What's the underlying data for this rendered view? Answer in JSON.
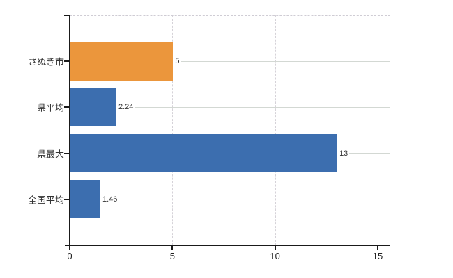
{
  "chart_data": {
    "type": "bar",
    "orientation": "horizontal",
    "categories": [
      "さぬき市",
      "県平均",
      "県最大",
      "全国平均"
    ],
    "values": [
      5,
      2.24,
      13,
      1.46
    ],
    "value_labels": [
      "5",
      "2.24",
      "13",
      "1.46"
    ],
    "bar_colors": [
      "#eb963c",
      "#3c6eaf",
      "#3c6eaf",
      "#3c6eaf"
    ],
    "xlim": [
      0,
      15
    ],
    "xticks": [
      0,
      5,
      10,
      15
    ],
    "xtick_labels": [
      "0",
      "5",
      "10",
      "15"
    ],
    "grid": true,
    "legend_position": "none",
    "colors": {
      "highlight_bar": "#eb963c",
      "default_bar": "#3c6eaf",
      "axis": "#1a1a1a",
      "horizontal_gridline": "#d3d8d3",
      "vertical_gridline": "#d5d2d8",
      "top_border": "#cfccd4",
      "text": "#333333"
    }
  }
}
